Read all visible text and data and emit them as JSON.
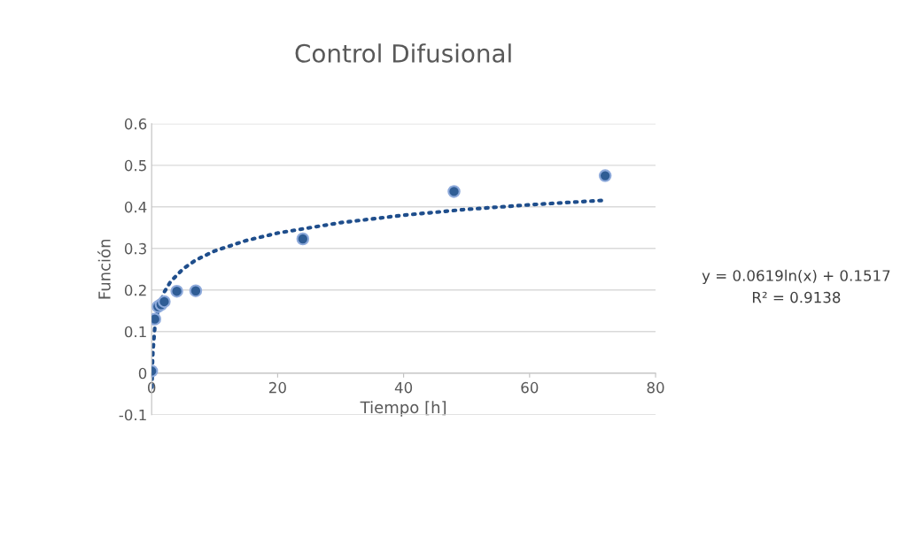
{
  "chart_data": {
    "type": "scatter",
    "title": "Control Difusional",
    "xlabel": "Tiempo [h]",
    "ylabel": "Función",
    "xlim": [
      0,
      80
    ],
    "xticks": [
      0,
      20,
      40,
      60,
      80
    ],
    "ylim": [
      -0.1,
      0.6
    ],
    "yticks": [
      -0.1,
      0,
      0.1,
      0.2,
      0.3,
      0.4,
      0.5,
      0.6
    ],
    "grid": "y",
    "legend": false,
    "annotations": [
      "y = 0.0619ln(x) + 0.1517",
      "R² = 0.9138"
    ],
    "series": [
      {
        "color": "#2f5d95",
        "marker": "circle",
        "x": [
          0,
          0.5,
          1,
          1.5,
          2,
          4,
          7,
          24,
          48,
          72
        ],
        "values": [
          0.005,
          0.13,
          0.16,
          0.165,
          0.172,
          0.197,
          0.198,
          0.323,
          0.437,
          0.475
        ]
      },
      {
        "type": "line",
        "color": "#1f4e8c",
        "line_style": "dotted",
        "marker": "none",
        "x": [
          0.05,
          0.1,
          0.2,
          0.5,
          1,
          2,
          3,
          5,
          7,
          10,
          15,
          20,
          30,
          40,
          50,
          60,
          72
        ],
        "values": [
          -0.034,
          0.009,
          0.052,
          0.109,
          0.152,
          0.195,
          0.22,
          0.251,
          0.272,
          0.294,
          0.319,
          0.337,
          0.362,
          0.38,
          0.394,
          0.405,
          0.416
        ]
      }
    ]
  }
}
